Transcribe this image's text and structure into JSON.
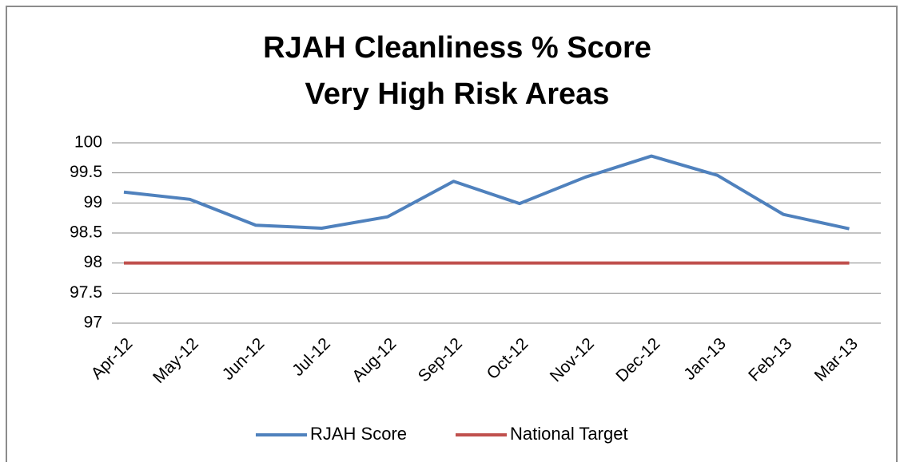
{
  "chart_data": {
    "type": "line",
    "title": [
      "RJAH Cleanliness % Score",
      "Very High Risk Areas"
    ],
    "categories": [
      "Apr-12",
      "May-12",
      "Jun-12",
      "Jul-12",
      "Aug-12",
      "Sep-12",
      "Oct-12",
      "Nov-12",
      "Dec-12",
      "Jan-13",
      "Feb-13",
      "Mar-13"
    ],
    "series": [
      {
        "name": "RJAH Score",
        "color": "#4f81bd",
        "values": [
          99.18,
          99.06,
          98.63,
          98.58,
          98.77,
          99.36,
          98.99,
          99.43,
          99.78,
          99.46,
          98.81,
          98.57
        ]
      },
      {
        "name": "National Target",
        "color": "#c0504d",
        "values": [
          98,
          98,
          98,
          98,
          98,
          98,
          98,
          98,
          98,
          98,
          98,
          98
        ]
      }
    ],
    "ylim": [
      97,
      100
    ],
    "yticks": [
      97,
      97.5,
      98,
      98.5,
      99,
      99.5,
      100
    ],
    "grid": true,
    "legend": "bottom"
  }
}
